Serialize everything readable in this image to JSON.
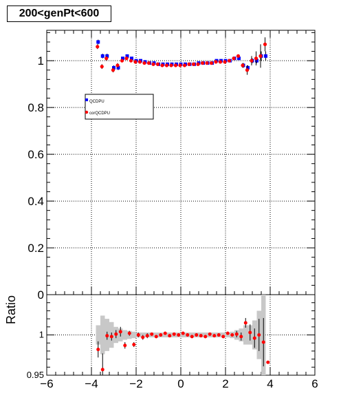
{
  "title": "200<genPt<600",
  "chart_data": [
    {
      "type": "scatter",
      "xlim": [
        -6,
        6
      ],
      "ylim": [
        0,
        1.13
      ],
      "grid": true,
      "y_ticks": [
        "0",
        "0.2",
        "0.4",
        "0.6",
        "0.8",
        "1"
      ],
      "y_tick_values": [
        0,
        0.2,
        0.4,
        0.6,
        0.8,
        1
      ],
      "legend_position": "upper-left",
      "series": [
        {
          "name": "QCDPU",
          "color": "#0000ff",
          "marker": "square",
          "x": [
            -3.7,
            -3.5,
            -3.3,
            -3.0,
            -2.8,
            -2.6,
            -2.4,
            -2.2,
            -2.0,
            -1.8,
            -1.6,
            -1.4,
            -1.2,
            -1.0,
            -0.8,
            -0.6,
            -0.4,
            -0.2,
            0.0,
            0.2,
            0.4,
            0.6,
            0.8,
            1.0,
            1.2,
            1.4,
            1.6,
            1.8,
            2.0,
            2.2,
            2.4,
            2.6,
            2.8,
            3.0,
            3.2,
            3.4,
            3.6,
            3.8
          ],
          "y": [
            1.08,
            1.02,
            1.02,
            0.97,
            0.97,
            1.01,
            1.02,
            1.01,
            1.0,
            1.0,
            0.995,
            0.99,
            0.99,
            0.985,
            0.985,
            0.985,
            0.985,
            0.985,
            0.985,
            0.985,
            0.985,
            0.985,
            0.99,
            0.99,
            0.99,
            0.99,
            1.0,
            1.0,
            1.0,
            1.0,
            1.01,
            1.01,
            0.98,
            0.97,
            1.0,
            1.0,
            1.02,
            1.02
          ],
          "err": [
            0.01,
            0.01,
            0.01,
            0.01,
            0.01,
            0.005,
            0.005,
            0.005,
            0.005,
            0.005,
            0.005,
            0.005,
            0.005,
            0.005,
            0.005,
            0.005,
            0.005,
            0.005,
            0.005,
            0.005,
            0.005,
            0.005,
            0.005,
            0.005,
            0.005,
            0.005,
            0.005,
            0.005,
            0.005,
            0.005,
            0.005,
            0.005,
            0.01,
            0.01,
            0.01,
            0.01,
            0.02,
            0.02
          ]
        },
        {
          "name": "corQCDPU",
          "color": "#ff0000",
          "marker": "circle",
          "x": [
            -3.7,
            -3.5,
            -3.3,
            -3.0,
            -2.8,
            -2.6,
            -2.4,
            -2.2,
            -2.0,
            -1.8,
            -1.6,
            -1.4,
            -1.2,
            -1.0,
            -0.8,
            -0.6,
            -0.4,
            -0.2,
            0.0,
            0.2,
            0.4,
            0.6,
            0.8,
            1.0,
            1.2,
            1.4,
            1.6,
            1.8,
            2.0,
            2.2,
            2.4,
            2.6,
            2.8,
            3.0,
            3.2,
            3.4,
            3.6,
            3.8
          ],
          "y": [
            1.06,
            0.975,
            1.01,
            0.96,
            0.98,
            1.0,
            1.01,
            1.0,
            0.995,
            0.995,
            0.99,
            0.99,
            0.985,
            0.985,
            0.98,
            0.98,
            0.98,
            0.98,
            0.98,
            0.98,
            0.985,
            0.985,
            0.985,
            0.99,
            0.99,
            0.99,
            0.995,
            0.995,
            0.995,
            1.0,
            1.01,
            1.02,
            0.98,
            0.96,
            1.0,
            1.01,
            1.02,
            1.07
          ],
          "err": [
            0.01,
            0.01,
            0.01,
            0.01,
            0.01,
            0.005,
            0.005,
            0.005,
            0.005,
            0.005,
            0.005,
            0.005,
            0.005,
            0.005,
            0.005,
            0.005,
            0.005,
            0.005,
            0.005,
            0.005,
            0.005,
            0.005,
            0.005,
            0.005,
            0.005,
            0.005,
            0.005,
            0.005,
            0.005,
            0.005,
            0.005,
            0.005,
            0.01,
            0.02,
            0.02,
            0.03,
            0.05,
            0.03
          ]
        }
      ]
    },
    {
      "type": "scatter",
      "xlim": [
        -6,
        6
      ],
      "ylim": [
        0.95,
        1.05
      ],
      "grid": true,
      "ylabel": "Ratio",
      "y_ticks": [
        "0.95",
        "1"
      ],
      "y_tick_values": [
        0.95,
        1.0
      ],
      "x_ticks": [
        "−6",
        "−4",
        "−2",
        "0",
        "2",
        "4",
        "6"
      ],
      "x_tick_values": [
        -6,
        -4,
        -2,
        0,
        2,
        4,
        6
      ],
      "ratio": {
        "color": "#ff0000",
        "x": [
          -3.7,
          -3.5,
          -3.3,
          -3.1,
          -2.9,
          -2.7,
          -2.5,
          -2.3,
          -2.1,
          -1.9,
          -1.7,
          -1.5,
          -1.3,
          -1.1,
          -0.9,
          -0.7,
          -0.5,
          -0.3,
          -0.1,
          0.1,
          0.3,
          0.5,
          0.7,
          0.9,
          1.1,
          1.3,
          1.5,
          1.7,
          1.9,
          2.1,
          2.3,
          2.5,
          2.7,
          2.9,
          3.1,
          3.3,
          3.5,
          3.7,
          3.9
        ],
        "y": [
          0.982,
          0.957,
          0.999,
          0.998,
          1.001,
          1.004,
          0.987,
          1.002,
          0.988,
          1.0,
          0.997,
          0.999,
          1.001,
          0.998,
          1.0,
          1.002,
          0.999,
          1.001,
          1.0,
          1.002,
          1.0,
          0.998,
          1.0,
          0.999,
          0.998,
          1.001,
          0.999,
          1.0,
          0.998,
          1.002,
          1.0,
          1.001,
          0.998,
          1.015,
          1.003,
          0.996,
          1.0,
          0.991,
          0.966
        ],
        "err": [
          0.01,
          0.02,
          0.005,
          0.005,
          0.005,
          0.006,
          0.004,
          0.003,
          0.003,
          0.003,
          0.003,
          0.003,
          0.002,
          0.002,
          0.002,
          0.002,
          0.002,
          0.002,
          0.002,
          0.002,
          0.002,
          0.002,
          0.002,
          0.002,
          0.002,
          0.002,
          0.002,
          0.002,
          0.002,
          0.002,
          0.002,
          0.004,
          0.005,
          0.006,
          0.01,
          0.012,
          0.02,
          0.03,
          0.0
        ]
      },
      "band": {
        "color": "#c8c8c8",
        "x": [
          -3.7,
          -3.5,
          -3.3,
          -3.1,
          -2.9,
          -2.7,
          -2.5,
          -2.3,
          -2.1,
          -1.9,
          -1.7,
          -1.5,
          -1.3,
          -1.1,
          -0.9,
          -0.7,
          -0.5,
          -0.3,
          -0.1,
          0.1,
          0.3,
          0.5,
          0.7,
          0.9,
          1.1,
          1.3,
          1.5,
          1.7,
          1.9,
          2.1,
          2.3,
          2.5,
          2.7,
          2.9,
          3.1,
          3.3,
          3.5,
          3.7
        ],
        "half_width": [
          0.012,
          0.024,
          0.02,
          0.016,
          0.01,
          0.008,
          0.006,
          0.005,
          0.004,
          0.003,
          0.003,
          0.003,
          0.003,
          0.003,
          0.003,
          0.003,
          0.003,
          0.003,
          0.003,
          0.003,
          0.003,
          0.003,
          0.003,
          0.003,
          0.003,
          0.003,
          0.003,
          0.003,
          0.003,
          0.003,
          0.004,
          0.006,
          0.008,
          0.012,
          0.012,
          0.018,
          0.03,
          0.055
        ]
      }
    }
  ]
}
